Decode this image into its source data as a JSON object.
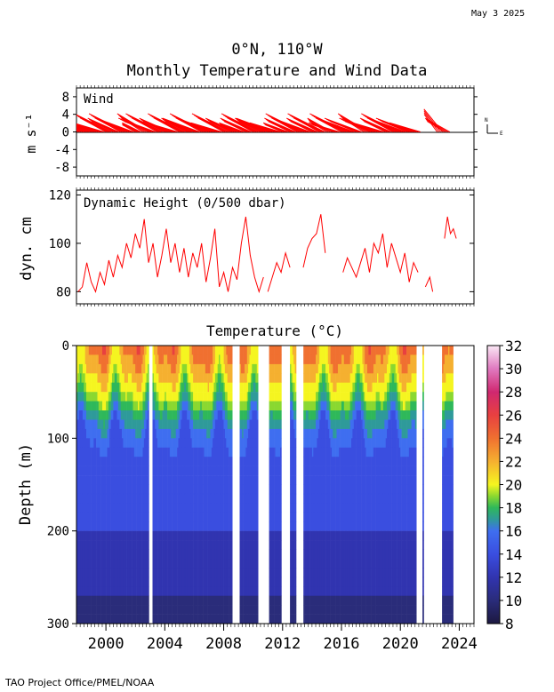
{
  "date_stamp": "May  3 2025",
  "title_line1": "0°N, 110°W",
  "title_line2": "Monthly Temperature and Wind Data",
  "footer": "TAO Project Office/PMEL/NOAA",
  "colors": {
    "series_red": "#ff0000",
    "temp_deep": "#2b2f8a",
    "temp_mid": "#3d58e6"
  },
  "chart_data": [
    {
      "type": "line",
      "panel": "wind",
      "title": "Wind",
      "ylabel": "m s⁻¹",
      "ylim": [
        -10,
        10
      ],
      "yticks": [
        8,
        4,
        0,
        -4,
        -8
      ],
      "compass": {
        "north": "N",
        "east": "E"
      },
      "series": [
        {
          "description_only_visual": "monthly wind vectors, mostly easterly (blowing to the west) with a slight northward component",
          "x": [
            1998.1,
            1998.5,
            1999.0,
            1999.5,
            2000.0,
            2000.5,
            2001.0,
            2001.5,
            2002.0,
            2002.5,
            2003.0,
            2003.5,
            2004.0,
            2004.5,
            2005.0,
            2005.5,
            2006.0,
            2006.5,
            2007.0,
            2007.5,
            2008.0,
            2008.5,
            2009.0,
            2009.5,
            2010.0,
            2010.5,
            2011.0,
            2011.5,
            2012.0,
            2012.5,
            2013.0,
            2013.5,
            2014.0,
            2014.5,
            2015.0,
            2015.5,
            2016.0,
            2016.5,
            2017.0,
            2017.5,
            2018.0,
            2018.5,
            2019.0,
            2019.5,
            2020.0,
            2020.5,
            2021.0,
            2022.5,
            2023.0
          ],
          "u": [
            -3,
            -5,
            -6,
            -5,
            -6,
            -5,
            -6,
            -6,
            -3,
            -5,
            -6,
            -6,
            -5,
            -5,
            -6,
            -5,
            -6,
            -6,
            -6,
            -5,
            -6,
            -5,
            -4,
            -5,
            -6,
            -5,
            -6,
            -5,
            -4,
            -5,
            -6,
            -6,
            -5,
            -6,
            -4,
            -5,
            -6,
            -6,
            -6,
            -5,
            -6,
            -5,
            -5,
            -6,
            -6,
            -6,
            -5,
            -3,
            -4
          ],
          "v": [
            2,
            3,
            3,
            2,
            4,
            3,
            4,
            3,
            2,
            4,
            3,
            4,
            3,
            2,
            4,
            3,
            3,
            4,
            3,
            2,
            4,
            3,
            2,
            3,
            4,
            3,
            3,
            2,
            2,
            3,
            4,
            3,
            3,
            4,
            3,
            2,
            4,
            3,
            3,
            4,
            3,
            2,
            3,
            4,
            3,
            3,
            2,
            5,
            3
          ]
        }
      ]
    },
    {
      "type": "line",
      "panel": "dynamic_height",
      "title": "Dynamic Height (0/500 dbar)",
      "ylabel": "dyn. cm",
      "ylim": [
        75,
        122
      ],
      "yticks": [
        120,
        100,
        80
      ],
      "series": [
        {
          "segments": [
            {
              "x": [
                1998.1,
                1998.4,
                1998.7,
                1999.0,
                1999.3,
                1999.6,
                1999.9,
                2000.2,
                2000.5,
                2000.8,
                2001.1,
                2001.4,
                2001.7,
                2002.0,
                2002.3,
                2002.6,
                2002.9,
                2003.2,
                2003.5,
                2003.8,
                2004.1,
                2004.4,
                2004.7,
                2005.0,
                2005.3,
                2005.6,
                2005.9,
                2006.2,
                2006.5,
                2006.8,
                2007.1,
                2007.4,
                2007.7,
                2008.0,
                2008.3,
                2008.6,
                2008.9,
                2009.2,
                2009.5,
                2009.8,
                2010.1,
                2010.4,
                2010.7
              ],
              "y": [
                80,
                82,
                92,
                84,
                80,
                88,
                83,
                93,
                86,
                95,
                90,
                100,
                94,
                104,
                98,
                110,
                92,
                100,
                86,
                95,
                106,
                92,
                100,
                88,
                98,
                86,
                96,
                90,
                100,
                84,
                94,
                106,
                82,
                88,
                80,
                90,
                85,
                100,
                111,
                95,
                86,
                80,
                86
              ]
            },
            {
              "x": [
                2011.0,
                2011.3,
                2011.6,
                2011.9,
                2012.2,
                2012.5
              ],
              "y": [
                80,
                86,
                92,
                88,
                96,
                90
              ]
            },
            {
              "x": [
                2013.4,
                2013.7,
                2014.0,
                2014.3,
                2014.6,
                2014.9
              ],
              "y": [
                90,
                98,
                102,
                104,
                112,
                96
              ]
            },
            {
              "x": [
                2016.1,
                2016.4,
                2016.7,
                2017.0,
                2017.3,
                2017.6,
                2017.9,
                2018.2,
                2018.5,
                2018.8,
                2019.1,
                2019.4,
                2019.7,
                2020.0,
                2020.3,
                2020.6,
                2020.9,
                2021.2
              ],
              "y": [
                88,
                94,
                90,
                86,
                92,
                98,
                88,
                100,
                96,
                104,
                90,
                100,
                94,
                88,
                96,
                84,
                92,
                88
              ]
            },
            {
              "x": [
                2021.7,
                2022.0,
                2022.2
              ],
              "y": [
                82,
                86,
                80
              ]
            },
            {
              "x": [
                2023.0,
                2023.2,
                2023.4,
                2023.6,
                2023.8
              ],
              "y": [
                102,
                111,
                104,
                106,
                102
              ]
            }
          ]
        }
      ]
    },
    {
      "type": "heatmap",
      "panel": "temperature",
      "title": "Temperature (°C)",
      "ylabel": "Depth (m)",
      "xlim": [
        1998,
        2025
      ],
      "ylim": [
        300,
        0
      ],
      "xticks": [
        "2000",
        "2004",
        "2008",
        "2012",
        "2016",
        "2020",
        "2024"
      ],
      "xtick_values": [
        2000,
        2004,
        2008,
        2012,
        2016,
        2020,
        2024
      ],
      "yticks": [
        0,
        100,
        200,
        300
      ],
      "colorbar": {
        "ticks": [
          "32",
          "30",
          "28",
          "26",
          "24",
          "22",
          "20",
          "18",
          "16",
          "14",
          "12",
          "10",
          "8"
        ],
        "range": [
          8,
          32
        ],
        "stops": [
          {
            "t": 8,
            "c": "#1c1840"
          },
          {
            "t": 10,
            "c": "#2a2c7a"
          },
          {
            "t": 12,
            "c": "#3134b0"
          },
          {
            "t": 14,
            "c": "#3a4ee0"
          },
          {
            "t": 16,
            "c": "#3f6ef0"
          },
          {
            "t": 17,
            "c": "#2f9a9a"
          },
          {
            "t": 18,
            "c": "#2fb85a"
          },
          {
            "t": 19,
            "c": "#8ad830"
          },
          {
            "t": 20,
            "c": "#f5f520"
          },
          {
            "t": 22,
            "c": "#f5b030"
          },
          {
            "t": 24,
            "c": "#f07030"
          },
          {
            "t": 26,
            "c": "#e84040"
          },
          {
            "t": 28,
            "c": "#d02870"
          },
          {
            "t": 30,
            "c": "#e07ac0"
          },
          {
            "t": 32,
            "c": "#fbe8f5"
          }
        ]
      },
      "gaps_years": [
        [
          2002.9,
          2003.2
        ],
        [
          2008.6,
          2009.1
        ],
        [
          2010.3,
          2011.1
        ],
        [
          2011.9,
          2012.5
        ],
        [
          2012.9,
          2013.4
        ],
        [
          2021.1,
          2021.5
        ],
        [
          2021.6,
          2022.8
        ],
        [
          2023.6,
          2025.0
        ]
      ],
      "profile_depth_m": [
        0,
        20,
        40,
        60,
        80,
        100,
        120,
        150,
        200,
        250,
        300
      ],
      "profile_temp_c": [
        24,
        23,
        21,
        19,
        17,
        16,
        15.5,
        15,
        14,
        12.5,
        11
      ]
    }
  ]
}
